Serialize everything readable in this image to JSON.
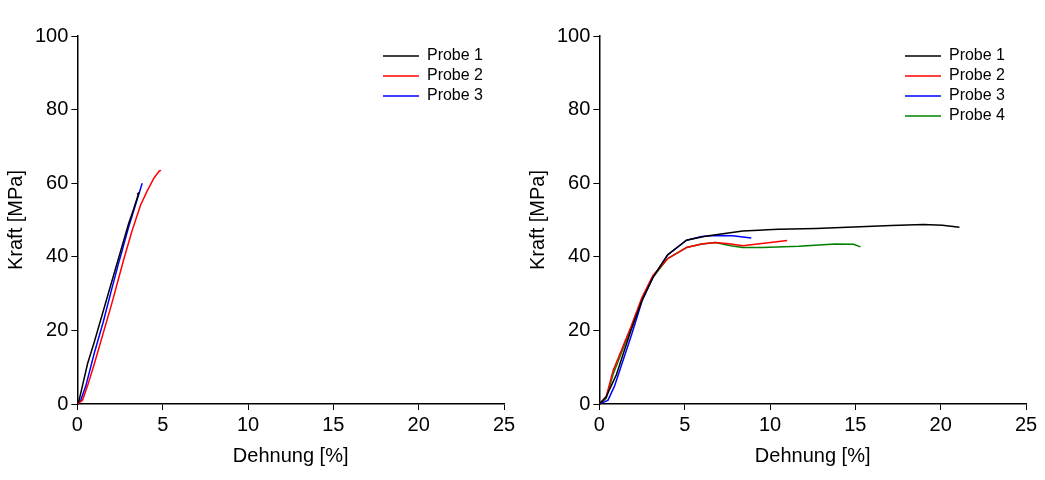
{
  "chart_data": [
    {
      "type": "line",
      "xlabel": "Dehnung [%]",
      "ylabel": "Kraft [MPa]",
      "xlim": [
        0,
        25
      ],
      "xticks": [
        0,
        5,
        10,
        15,
        20,
        25
      ],
      "ylim": [
        0,
        100
      ],
      "yticks": [
        0,
        20,
        40,
        60,
        80,
        100
      ],
      "legend": "top right",
      "marker": "none",
      "series": [
        {
          "name": "Probe 1",
          "color": "#000000",
          "x": [
            0,
            0.1,
            0.3,
            0.6,
            1.0,
            1.5,
            2.0,
            2.5,
            3.0,
            3.3,
            3.6,
            3.5
          ],
          "values": [
            0,
            1,
            5,
            11,
            17,
            25,
            33,
            41,
            49,
            53,
            57.4,
            57
          ]
        },
        {
          "name": "Probe 2",
          "color": "#ff0000",
          "x": [
            0,
            0.3,
            0.6,
            1.0,
            1.5,
            2.0,
            2.7,
            3.2,
            3.7,
            4.1,
            4.5,
            4.8,
            4.9
          ],
          "values": [
            0,
            1,
            5,
            11,
            19,
            27,
            39,
            47,
            54,
            58,
            61.5,
            63.3,
            63.5
          ]
        },
        {
          "name": "Probe 3",
          "color": "#0000ff",
          "x": [
            0,
            0.2,
            0.5,
            1.0,
            1.5,
            2.0,
            2.4,
            3.0,
            3.4,
            3.8
          ],
          "values": [
            0,
            1,
            5,
            14,
            22,
            31,
            38,
            48,
            54,
            60
          ]
        }
      ]
    },
    {
      "type": "line",
      "xlabel": "Dehnung [%]",
      "ylabel": "Kraft [MPa]",
      "xlim": [
        0,
        25
      ],
      "xticks": [
        0,
        5,
        10,
        15,
        20,
        25
      ],
      "ylim": [
        0,
        100
      ],
      "yticks": [
        0,
        20,
        40,
        60,
        80,
        100
      ],
      "legend": "top right",
      "marker": "none",
      "series": [
        {
          "name": "Probe 1",
          "color": "#000000",
          "x": [
            0,
            0.4,
            1.0,
            1.85,
            2.5,
            3.15,
            4.0,
            5.1,
            6.2,
            8.4,
            10.5,
            12.7,
            14.9,
            17.1,
            19.0,
            20.1,
            21.1
          ],
          "values": [
            0,
            2,
            8,
            20,
            28.2,
            34.5,
            40.5,
            44.5,
            45.6,
            47,
            47.5,
            47.7,
            48.1,
            48.5,
            48.8,
            48.6,
            48
          ]
        },
        {
          "name": "Probe 2",
          "color": "#ff0000",
          "x": [
            0,
            0.4,
            0.8,
            1.85,
            2.5,
            3.15,
            4.0,
            5.1,
            6.0,
            6.8,
            7.7,
            8.4,
            9.5,
            11.0
          ],
          "values": [
            0,
            2,
            9,
            21,
            29,
            35,
            39.5,
            42.5,
            43.5,
            43.9,
            43.5,
            43,
            43.6,
            44.4
          ]
        },
        {
          "name": "Probe 3",
          "color": "#0000ff",
          "x": [
            0,
            0.5,
            0.9,
            1.9,
            2.5,
            3.15,
            4.0,
            5.1,
            6.0,
            6.8,
            7.8,
            8.9
          ],
          "values": [
            0,
            1,
            5,
            19,
            28,
            34.5,
            40.5,
            44.5,
            45.5,
            45.8,
            45.7,
            45.1
          ]
        },
        {
          "name": "Probe 4",
          "color": "#008000",
          "x": [
            0,
            0.4,
            0.8,
            1.85,
            2.5,
            3.15,
            4.0,
            5.1,
            6.0,
            6.8,
            7.7,
            8.4,
            9.5,
            11.7,
            13.8,
            14.9,
            15.3
          ],
          "values": [
            0,
            1.5,
            8,
            20.5,
            28.5,
            34.5,
            39.5,
            42.5,
            43.5,
            43.9,
            43,
            42.5,
            42.5,
            42.9,
            43.5,
            43.4,
            42.7
          ]
        }
      ]
    }
  ]
}
